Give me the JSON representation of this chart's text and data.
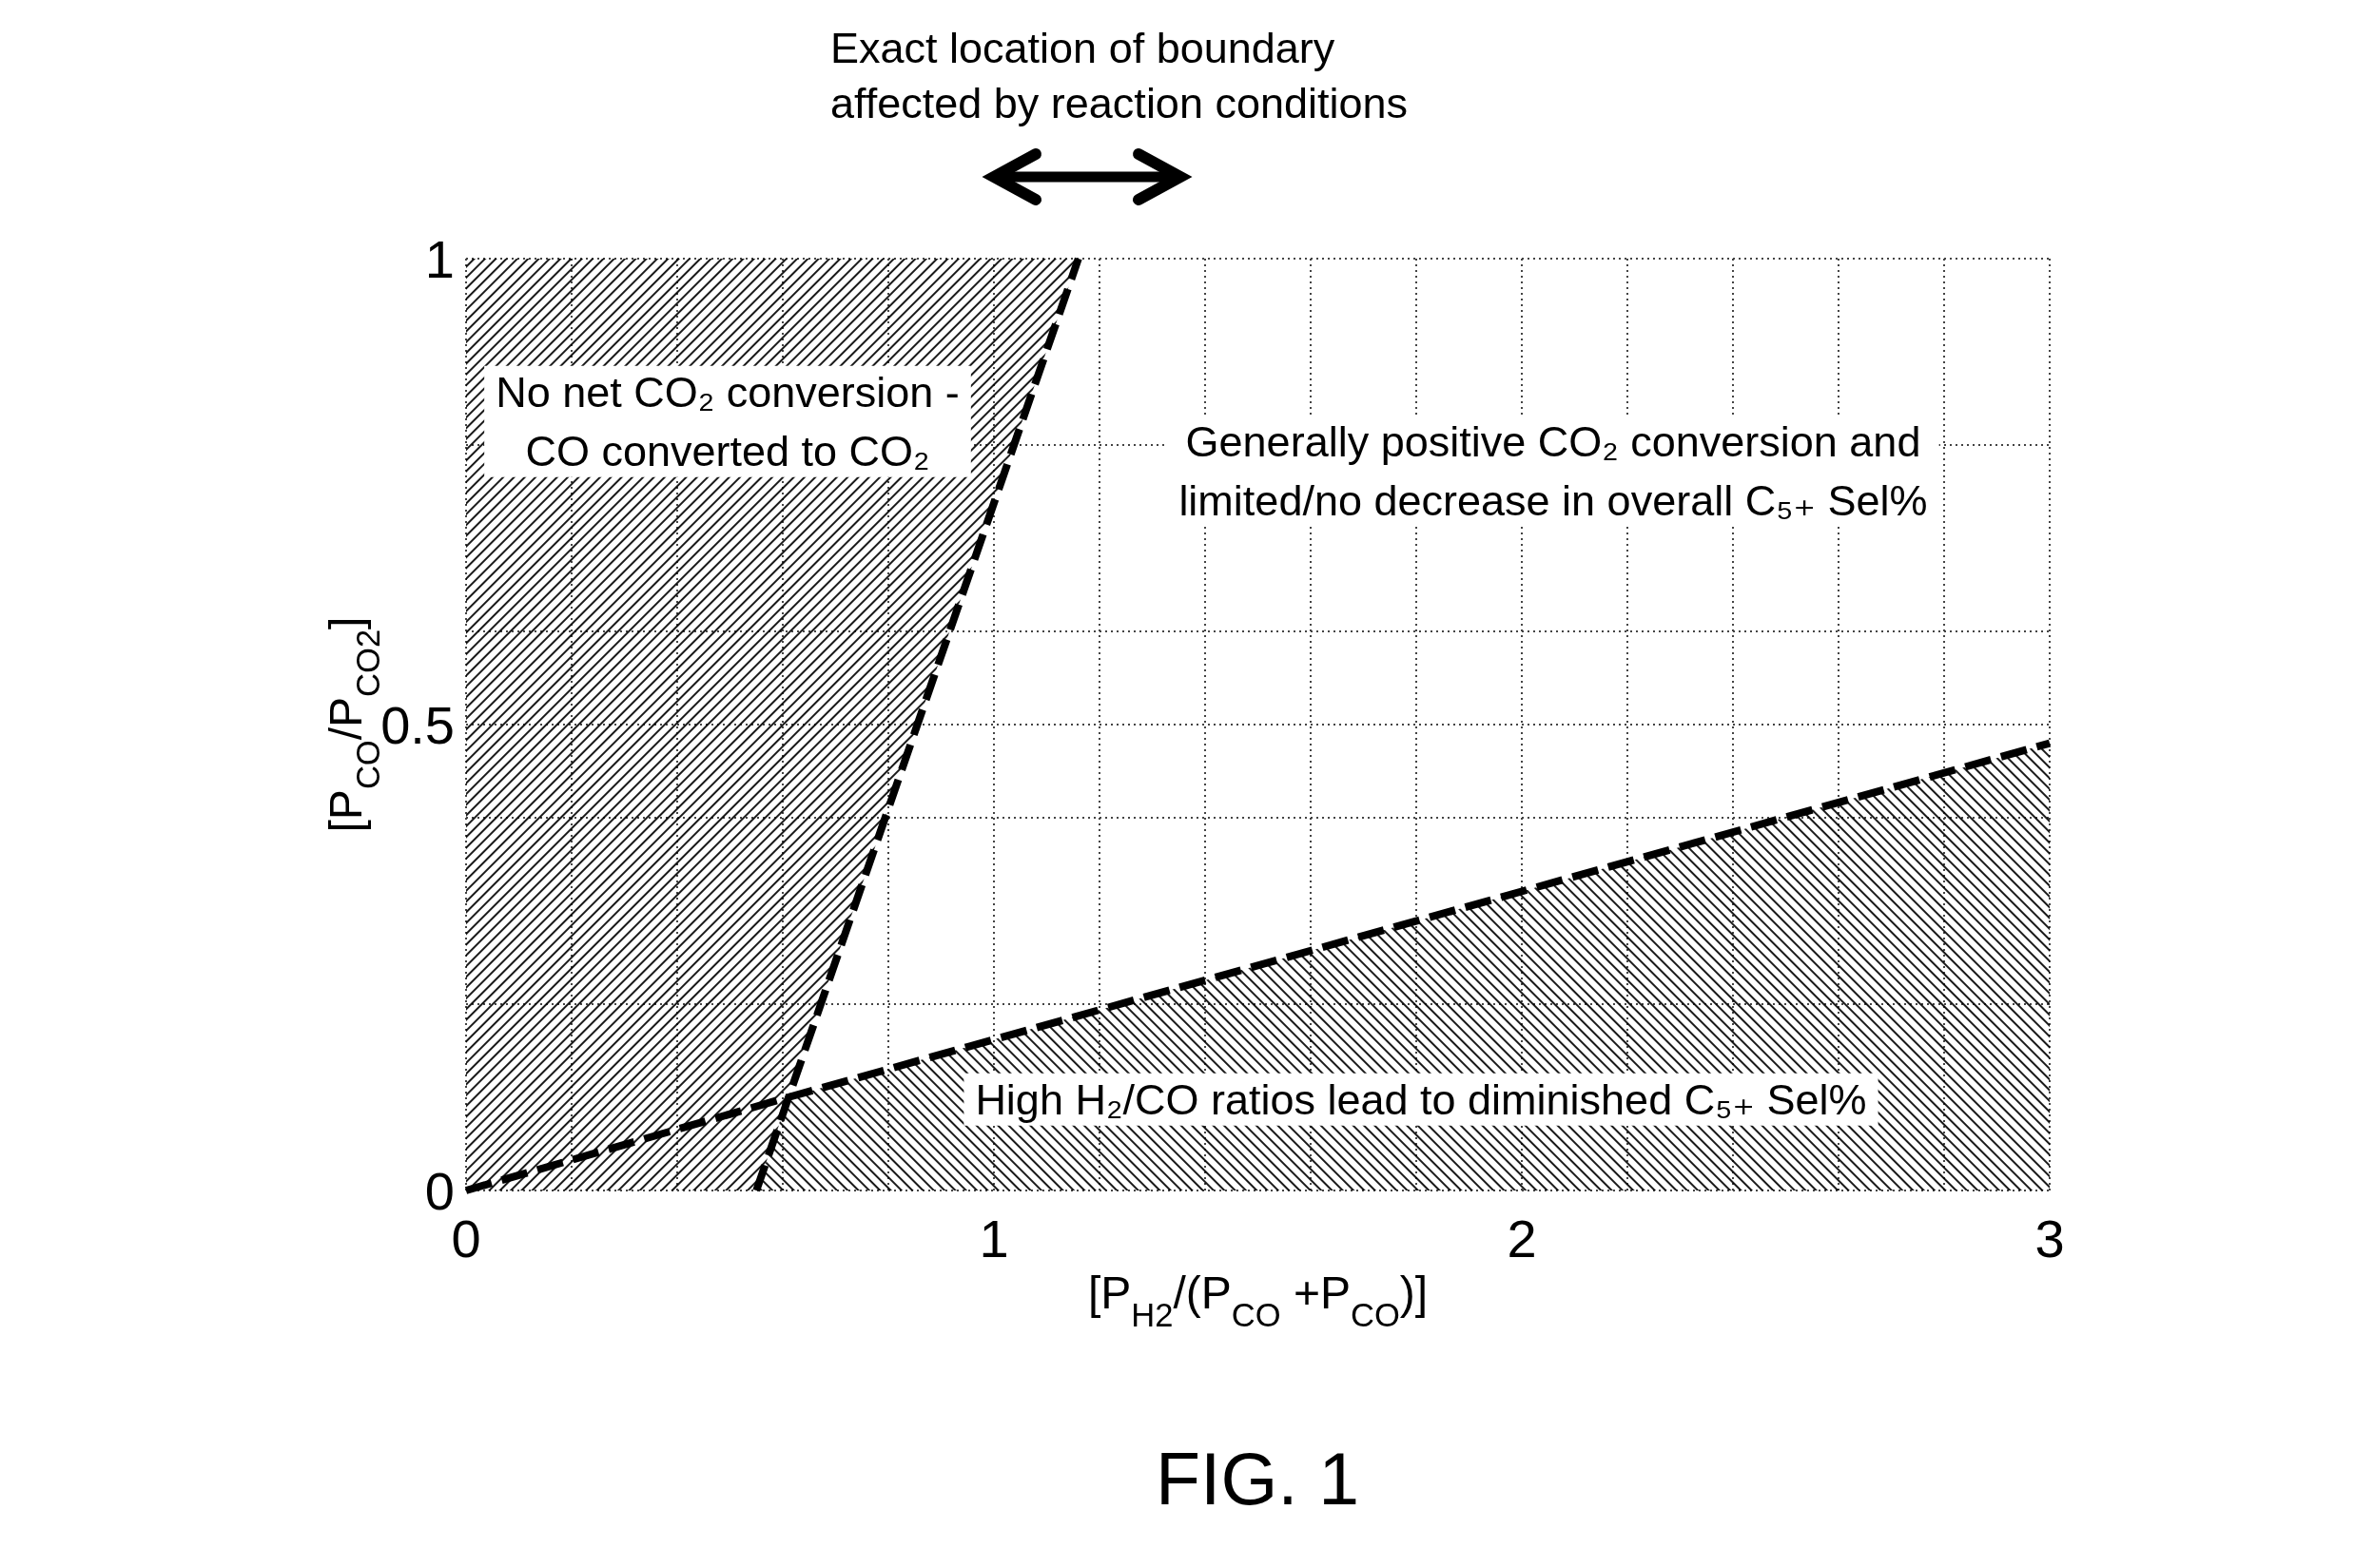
{
  "chart_data": {
    "type": "line",
    "xlabel": "[P$_{H2}$/(P$_{CO}$ +P$_{CO}$)]",
    "ylabel": "[P$_{CO}$/P$_{CO2}$]",
    "xlim": [
      0,
      3
    ],
    "ylim": [
      0,
      1
    ],
    "xticks": [
      0,
      {
        "value": 0.2,
        "label": null
      },
      {
        "value": 0.4,
        "label": null
      },
      {
        "value": 0.6,
        "label": null
      },
      {
        "value": 0.8,
        "label": null
      },
      1,
      {
        "value": 1.2,
        "label": null
      },
      {
        "value": 1.4,
        "label": null
      },
      {
        "value": 1.6,
        "label": null
      },
      {
        "value": 1.8,
        "label": null
      },
      2,
      {
        "value": 2.2,
        "label": null
      },
      {
        "value": 2.4,
        "label": null
      },
      {
        "value": 2.6,
        "label": null
      },
      {
        "value": 2.8,
        "label": null
      },
      3
    ],
    "yticks": [
      0,
      {
        "value": 0.2,
        "label": null
      },
      {
        "value": 0.4,
        "label": null
      },
      0.5,
      {
        "value": 0.6,
        "label": null
      },
      {
        "value": 0.8,
        "label": null
      },
      1
    ],
    "grid": true,
    "line_style": "dashed",
    "series": [
      {
        "color": "#000000",
        "x": [
          0,
          0.55,
          1.16
        ],
        "values": [
          null,
          0,
          1
        ],
        "lower": [
          0,
          0,
          1
        ],
        "upper": [
          1,
          1,
          1
        ]
      },
      {
        "type": "area",
        "color": "#000000",
        "x": [
          0.55,
          0.61,
          3
        ],
        "values": [
          0,
          0.1,
          0.48
        ]
      },
      {
        "color": "#000000",
        "x": [
          0,
          0.61,
          3
        ],
        "values": [
          0,
          0.1,
          0.48
        ]
      }
    ],
    "annotations": [
      "Exact location of boundary\naffected by reaction conditions",
      "No net CO₂ conversion -\nCO converted to CO₂",
      "Generally positive CO₂ conversion and\nlimited/no decrease in overall C₅₊ Sel%",
      "High H₂/CO ratios lead to diminished C₅₊ Sel%",
      "FIG. 1"
    ]
  }
}
